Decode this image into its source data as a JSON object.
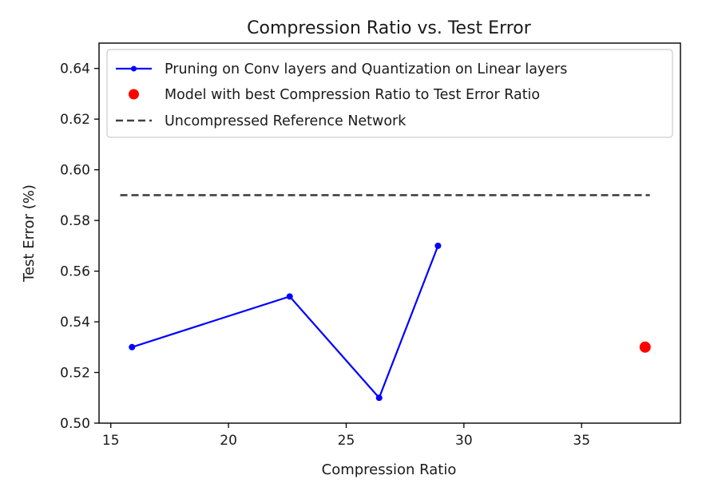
{
  "chart_data": {
    "type": "line",
    "title": "Compression Ratio  vs. Test Error",
    "xlabel": "Compression Ratio",
    "ylabel": "Test Error (%)",
    "xlim": [
      14.5,
      39.2
    ],
    "ylim": [
      0.5,
      0.65
    ],
    "xticks": [
      15,
      20,
      25,
      30,
      35
    ],
    "yticks": [
      0.5,
      0.52,
      0.54,
      0.56,
      0.58,
      0.6,
      0.62,
      0.64
    ],
    "grid": false,
    "legend_position": "top-right",
    "series": [
      {
        "name": "Pruning on Conv layers and Quantization on Linear layers",
        "style": "line-marker",
        "color": "#0000ff",
        "x": [
          15.9,
          22.6,
          26.4,
          28.9
        ],
        "y": [
          0.53,
          0.55,
          0.51,
          0.57
        ]
      },
      {
        "name": "Model with best Compression Ratio to Test Error Ratio",
        "style": "point",
        "color": "#ff0000",
        "x": [
          37.7
        ],
        "y": [
          0.53
        ]
      },
      {
        "name": "Uncompressed Reference Network",
        "style": "dashed",
        "color": "#404040",
        "x": [
          15.4,
          37.9
        ],
        "y": [
          0.59,
          0.59
        ]
      }
    ]
  }
}
